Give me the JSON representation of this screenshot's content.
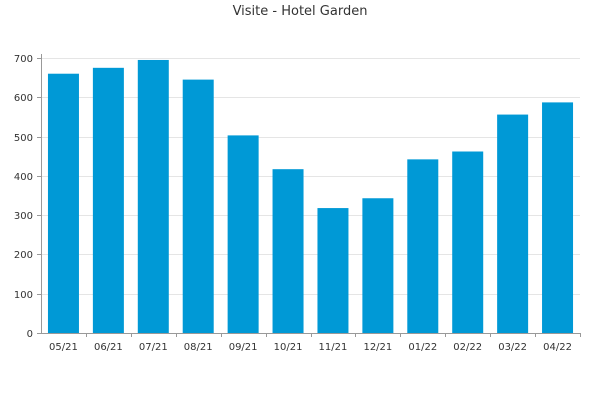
{
  "chart_data": {
    "type": "bar",
    "title": "Visite - Hotel Garden",
    "categories": [
      "05/21",
      "06/21",
      "07/21",
      "08/21",
      "09/21",
      "10/21",
      "11/21",
      "12/21",
      "01/22",
      "02/22",
      "03/22",
      "04/22"
    ],
    "values": [
      660,
      675,
      695,
      645,
      503,
      417,
      318,
      343,
      442,
      462,
      556,
      587
    ],
    "ylim": [
      0,
      700
    ],
    "yticks": [
      0,
      100,
      200,
      300,
      400,
      500,
      600,
      700
    ],
    "grid": true,
    "bar_color": "#0099d6",
    "axis_color": "#999999",
    "grid_color": "#e5e5e5"
  }
}
